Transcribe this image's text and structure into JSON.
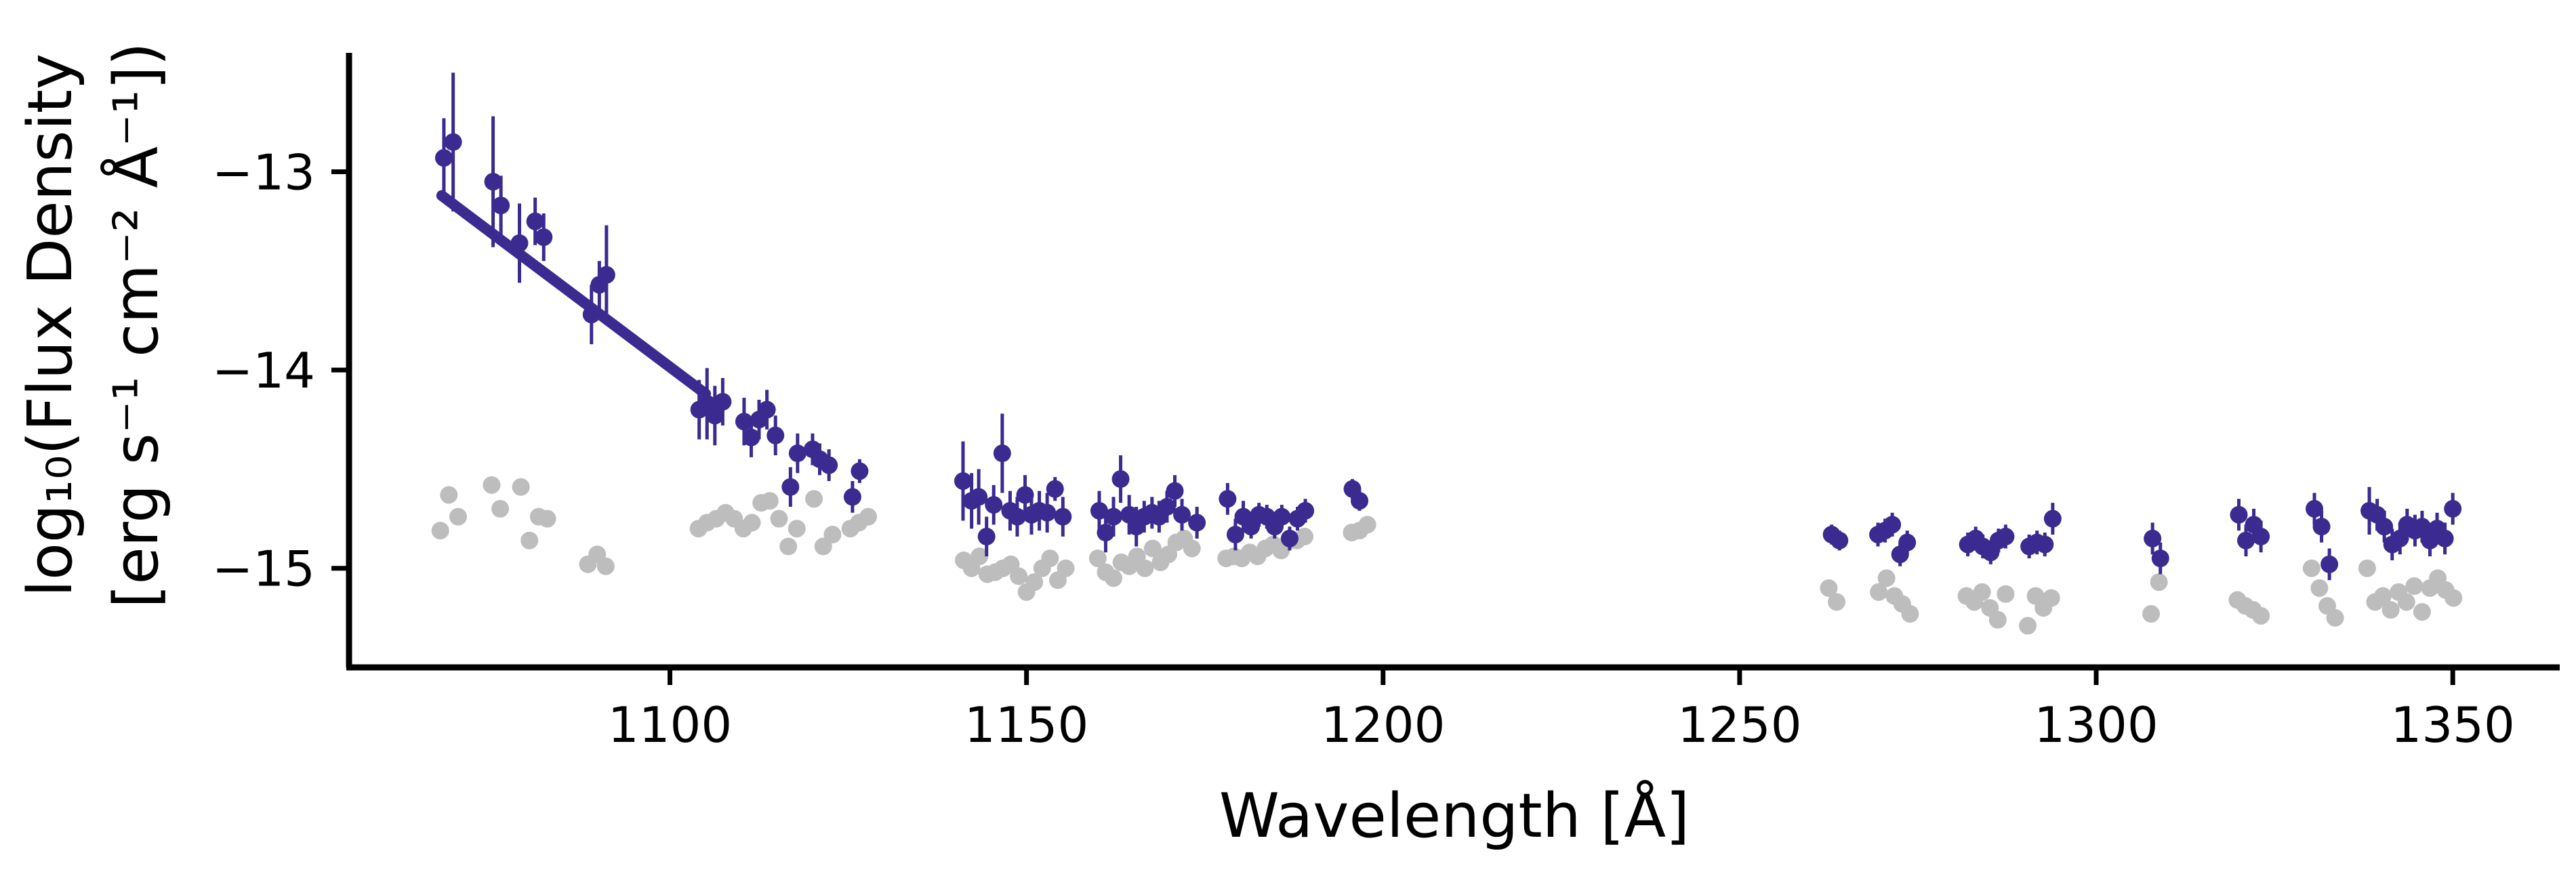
{
  "chart_data": {
    "type": "scatter",
    "xlabel": "Wavelength [Å]",
    "ylabel_line1": "log₁₀(Flux Density",
    "ylabel_line2": "[erg s⁻¹ cm⁻² Å⁻¹])",
    "xlim": [
      1055,
      1365
    ],
    "ylim": [
      -15.5,
      -12.4
    ],
    "xticks": [
      1100,
      1150,
      1200,
      1250,
      1300,
      1350
    ],
    "xtick_labels": [
      "1100",
      "1150",
      "1200",
      "1250",
      "1300",
      "1350"
    ],
    "yticks": [
      -13,
      -14,
      -15
    ],
    "ytick_labels": [
      "−13",
      "−14",
      "−15"
    ],
    "grid": false,
    "colors": {
      "measured": "#3b2a8f",
      "background": "#bdbdbd",
      "fit_line": "#3b2a8f",
      "axis": "#000000"
    },
    "fit_line": {
      "x": [
        1068,
        1105
      ],
      "y": [
        -13.12,
        -14.12
      ]
    },
    "series": [
      {
        "x": [
          1068.3,
          1069.6,
          1075.2,
          1076.3,
          1078.9,
          1081.1,
          1082.3,
          1089.0,
          1090.1,
          1091.1,
          1104.1,
          1105.2,
          1106.3,
          1107.4,
          1110.4,
          1111.4,
          1112.5,
          1113.6,
          1114.8,
          1116.9,
          1117.9,
          1120.0,
          1121.0,
          1122.3,
          1125.6,
          1126.6,
          1141.1,
          1142.3,
          1143.3,
          1144.4,
          1145.4,
          1146.6,
          1147.7,
          1148.7,
          1149.8,
          1150.7,
          1151.8,
          1152.9,
          1154.0,
          1155.1,
          1160.2,
          1161.1,
          1162.2,
          1163.2,
          1164.4,
          1165.4,
          1166.5,
          1167.6,
          1168.6,
          1169.7,
          1170.8,
          1171.8,
          1173.9,
          1178.2,
          1179.3,
          1180.4,
          1181.5,
          1182.6,
          1183.7,
          1184.8,
          1185.8,
          1186.9,
          1188.0,
          1189.1,
          1195.7,
          1196.7,
          1262.9,
          1264.0,
          1269.4,
          1270.4,
          1271.4,
          1272.5,
          1273.5,
          1282.0,
          1283.1,
          1284.1,
          1285.2,
          1286.3,
          1287.3,
          1290.6,
          1291.7,
          1292.8,
          1293.9,
          1307.9,
          1309.0,
          1320.0,
          1321.0,
          1322.1,
          1323.1,
          1330.6,
          1331.6,
          1332.7,
          1338.3,
          1339.4,
          1340.4,
          1341.5,
          1342.6,
          1343.6,
          1344.7,
          1345.7,
          1346.8,
          1347.8,
          1348.9,
          1350.0
        ],
        "y": [
          -12.93,
          -12.85,
          -13.05,
          -13.17,
          -13.36,
          -13.25,
          -13.33,
          -13.72,
          -13.57,
          -13.52,
          -14.2,
          -14.17,
          -14.23,
          -14.16,
          -14.26,
          -14.34,
          -14.25,
          -14.2,
          -14.33,
          -14.59,
          -14.42,
          -14.4,
          -14.45,
          -14.48,
          -14.64,
          -14.51,
          -14.56,
          -14.66,
          -14.64,
          -14.84,
          -14.68,
          -14.42,
          -14.71,
          -14.74,
          -14.63,
          -14.73,
          -14.71,
          -14.72,
          -14.6,
          -14.74,
          -14.71,
          -14.82,
          -14.74,
          -14.55,
          -14.73,
          -14.79,
          -14.74,
          -14.72,
          -14.74,
          -14.69,
          -14.61,
          -14.73,
          -14.77,
          -14.65,
          -14.83,
          -14.74,
          -14.79,
          -14.73,
          -14.74,
          -14.79,
          -14.74,
          -14.85,
          -14.75,
          -14.71,
          -14.6,
          -14.66,
          -14.83,
          -14.86,
          -14.83,
          -14.81,
          -14.78,
          -14.93,
          -14.87,
          -14.88,
          -14.85,
          -14.89,
          -14.92,
          -14.86,
          -14.84,
          -14.89,
          -14.87,
          -14.88,
          -14.75,
          -14.85,
          -14.95,
          -14.73,
          -14.86,
          -14.78,
          -14.84,
          -14.7,
          -14.79,
          -14.98,
          -14.71,
          -14.73,
          -14.79,
          -14.88,
          -14.85,
          -14.78,
          -14.81,
          -14.79,
          -14.86,
          -14.8,
          -14.85,
          -14.7
        ],
        "yerr": [
          0.2,
          0.35,
          0.33,
          0.15,
          0.2,
          0.12,
          0.12,
          0.15,
          0.12,
          0.25,
          0.15,
          0.18,
          0.15,
          0.12,
          0.12,
          0.1,
          0.1,
          0.1,
          0.1,
          0.1,
          0.1,
          0.08,
          0.08,
          0.08,
          0.08,
          0.06,
          0.2,
          0.14,
          0.14,
          0.1,
          0.1,
          0.2,
          0.1,
          0.1,
          0.1,
          0.1,
          0.1,
          0.1,
          0.06,
          0.1,
          0.1,
          0.1,
          0.1,
          0.12,
          0.1,
          0.1,
          0.08,
          0.08,
          0.08,
          0.08,
          0.08,
          0.08,
          0.08,
          0.08,
          0.08,
          0.08,
          0.06,
          0.06,
          0.06,
          0.06,
          0.06,
          0.06,
          0.06,
          0.06,
          0.05,
          0.05,
          0.05,
          0.05,
          0.06,
          0.06,
          0.06,
          0.06,
          0.06,
          0.06,
          0.06,
          0.06,
          0.06,
          0.06,
          0.06,
          0.06,
          0.06,
          0.06,
          0.08,
          0.08,
          0.08,
          0.08,
          0.08,
          0.08,
          0.08,
          0.08,
          0.08,
          0.08,
          0.12,
          0.08,
          0.08,
          0.08,
          0.08,
          0.08,
          0.08,
          0.08,
          0.08,
          0.08,
          0.08,
          0.08
        ],
        "color": "#3b2a8f"
      },
      {
        "x": [
          1067.8,
          1069.0,
          1070.3,
          1075.0,
          1076.2,
          1079.1,
          1080.3,
          1081.6,
          1082.8,
          1088.5,
          1089.8,
          1091.0,
          1104.0,
          1105.2,
          1106.5,
          1107.8,
          1109.0,
          1110.3,
          1111.5,
          1112.8,
          1114.0,
          1115.3,
          1116.6,
          1117.8,
          1120.2,
          1121.5,
          1122.8,
          1125.3,
          1126.5,
          1127.8,
          1141.2,
          1142.3,
          1143.4,
          1144.5,
          1145.6,
          1146.7,
          1147.8,
          1148.9,
          1150.0,
          1151.1,
          1152.2,
          1153.3,
          1154.4,
          1155.5,
          1160.0,
          1161.1,
          1162.2,
          1163.3,
          1164.4,
          1165.5,
          1166.6,
          1167.7,
          1168.8,
          1169.9,
          1171.0,
          1172.1,
          1173.2,
          1178.0,
          1179.1,
          1180.2,
          1181.3,
          1182.4,
          1183.5,
          1184.6,
          1185.7,
          1186.8,
          1187.9,
          1189.0,
          1195.6,
          1196.7,
          1197.8,
          1262.5,
          1263.6,
          1269.5,
          1270.6,
          1271.7,
          1272.8,
          1273.9,
          1281.8,
          1282.9,
          1284.0,
          1285.1,
          1286.2,
          1287.3,
          1290.4,
          1291.5,
          1292.6,
          1293.7,
          1307.7,
          1308.8,
          1319.8,
          1320.9,
          1322.0,
          1323.1,
          1330.2,
          1331.3,
          1332.4,
          1333.5,
          1338.0,
          1339.1,
          1340.2,
          1341.3,
          1342.4,
          1343.5,
          1344.6,
          1345.7,
          1346.8,
          1347.9,
          1349.0,
          1350.1
        ],
        "y": [
          -14.81,
          -14.63,
          -14.74,
          -14.58,
          -14.7,
          -14.59,
          -14.86,
          -14.74,
          -14.75,
          -14.98,
          -14.93,
          -14.99,
          -14.8,
          -14.77,
          -14.75,
          -14.72,
          -14.75,
          -14.8,
          -14.77,
          -14.67,
          -14.66,
          -14.75,
          -14.89,
          -14.8,
          -14.65,
          -14.89,
          -14.83,
          -14.8,
          -14.77,
          -14.74,
          -14.96,
          -15.0,
          -14.94,
          -15.03,
          -15.02,
          -15.0,
          -14.98,
          -15.04,
          -15.12,
          -15.07,
          -15.0,
          -14.95,
          -15.06,
          -15.0,
          -14.95,
          -15.02,
          -15.05,
          -14.97,
          -14.99,
          -14.94,
          -15.0,
          -14.9,
          -14.97,
          -14.93,
          -14.87,
          -14.85,
          -14.9,
          -14.95,
          -14.94,
          -14.95,
          -14.92,
          -14.94,
          -14.9,
          -14.88,
          -14.91,
          -14.86,
          -14.86,
          -14.84,
          -14.82,
          -14.81,
          -14.78,
          -15.1,
          -15.17,
          -15.12,
          -15.05,
          -15.14,
          -15.18,
          -15.23,
          -15.14,
          -15.17,
          -15.12,
          -15.2,
          -15.26,
          -15.13,
          -15.29,
          -15.14,
          -15.2,
          -15.15,
          -15.23,
          -15.07,
          -15.16,
          -15.19,
          -15.21,
          -15.24,
          -15.0,
          -15.1,
          -15.19,
          -15.25,
          -15.0,
          -15.17,
          -15.14,
          -15.21,
          -15.12,
          -15.17,
          -15.09,
          -15.22,
          -15.1,
          -15.05,
          -15.11,
          -15.15
        ],
        "color": "#bdbdbd"
      }
    ]
  }
}
